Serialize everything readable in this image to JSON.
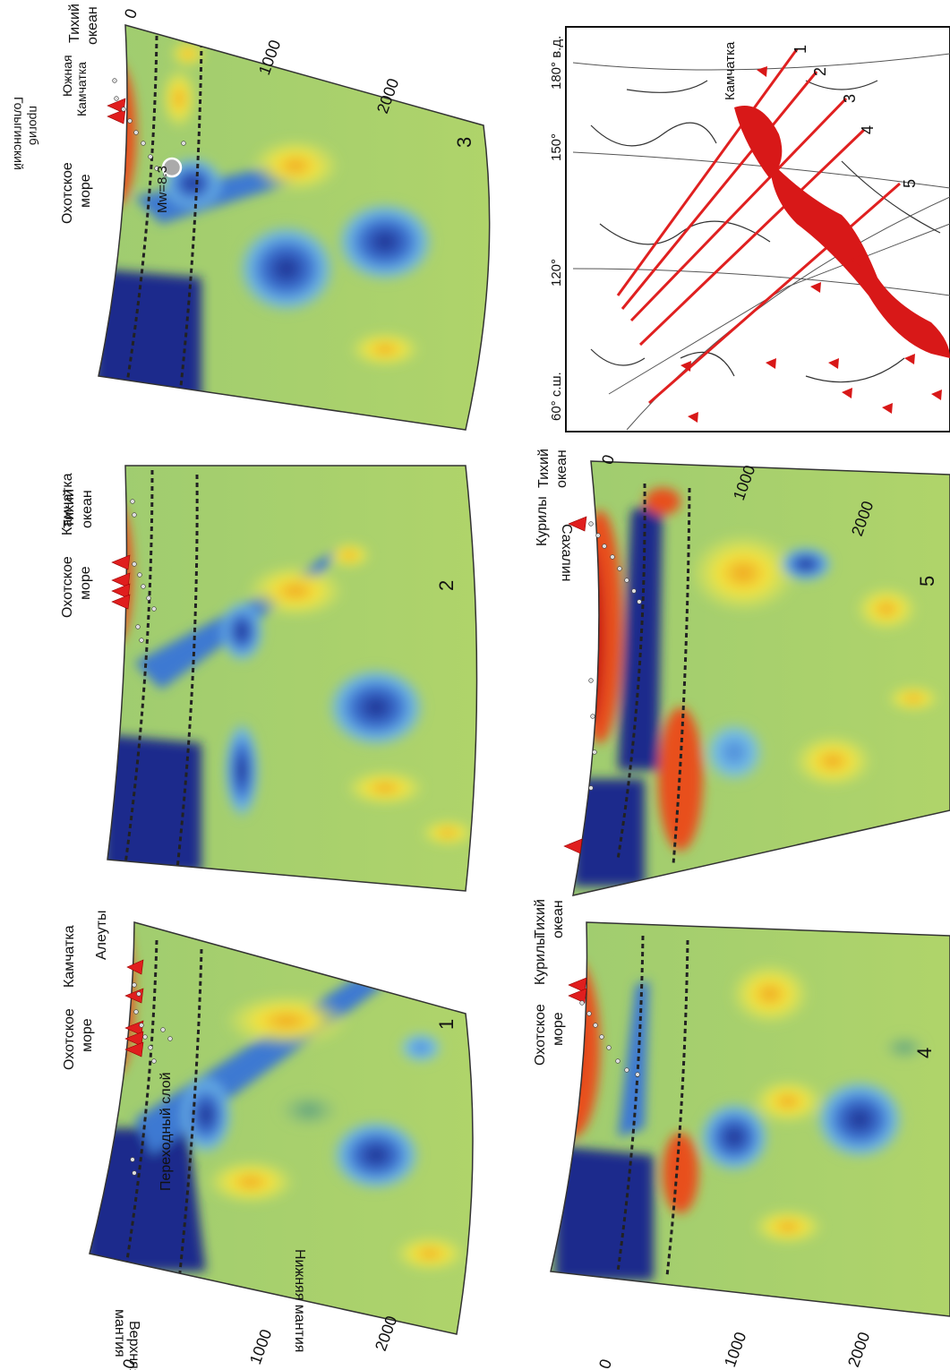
{
  "panel1": {
    "number": "1",
    "labels": [
      "Охотское",
      "море",
      "Камчатка",
      "Алеуты"
    ],
    "inside_labels": [
      "Переходный слой",
      "Нижняя мантия",
      "Верхняя",
      "мантия"
    ],
    "depth_ticks": [
      "0",
      "1000",
      "2000"
    ]
  },
  "panel2": {
    "number": "2",
    "labels": [
      "Охотское",
      "море",
      "Камчатка",
      "Тихий",
      "океан"
    ]
  },
  "panel3": {
    "number": "3",
    "labels": [
      "Охотское",
      "море",
      "Голыгинский",
      "прогиб",
      "Южная",
      "Камчатка",
      "Тихий",
      "океан"
    ],
    "magnitude": "Mw=8.3",
    "depth_ticks": [
      "0",
      "1000",
      "2000"
    ]
  },
  "panel4": {
    "number": "4",
    "labels": [
      "Охотское",
      "море",
      "Курилы",
      "Тихий",
      "океан"
    ],
    "depth_ticks": [
      "0",
      "1000",
      "2000"
    ]
  },
  "panel5": {
    "number": "5",
    "labels": [
      "Сахалин",
      "Курилы",
      "Тихий",
      "океан"
    ],
    "depth_ticks": [
      "0",
      "1000",
      "2000"
    ]
  },
  "map": {
    "lon_labels": [
      "180° в.д.",
      "150°",
      "120°",
      "60° с.ш."
    ],
    "profile_numbers": [
      "1",
      "2",
      "3",
      "4",
      "5"
    ],
    "place": "Камчатка"
  },
  "colors": {
    "deep_blue": "#1a2a8a",
    "blue": "#3a7fd0",
    "light_blue": "#69b7e8",
    "green": "#a8cf6a",
    "yellow": "#f1e84a",
    "orange": "#f0a030",
    "red": "#d8281e",
    "dark_red": "#a01010",
    "line_red": "#e02020"
  }
}
